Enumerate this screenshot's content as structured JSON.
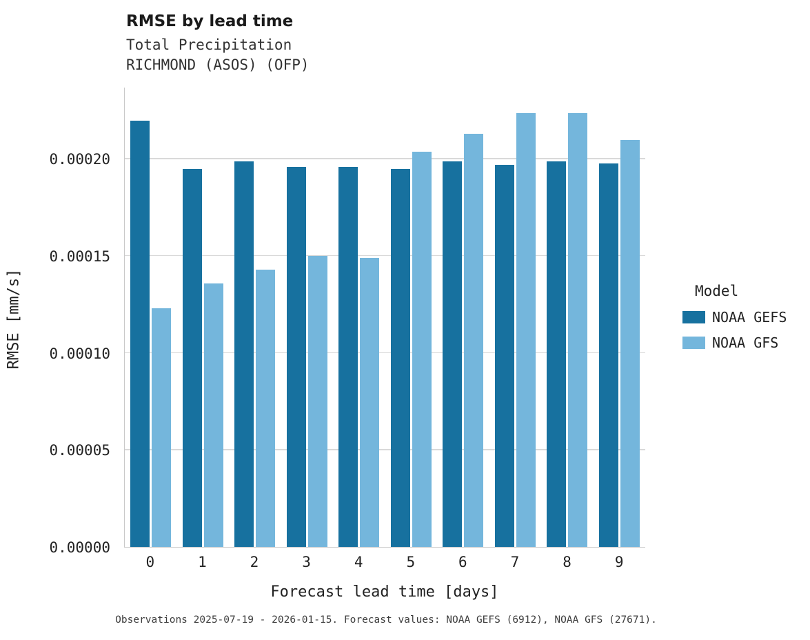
{
  "chart_data": {
    "type": "bar",
    "title": "RMSE by lead time",
    "subtitle_line1": "Total Precipitation",
    "subtitle_line2": "RICHMOND (ASOS) (OFP)",
    "xlabel": "Forecast lead time [days]",
    "ylabel": "RMSE [mm/s]",
    "categories": [
      "0",
      "1",
      "2",
      "3",
      "4",
      "5",
      "6",
      "7",
      "8",
      "9"
    ],
    "series": [
      {
        "name": "NOAA GEFS",
        "color": "#17719f",
        "values": [
          0.00022,
          0.000195,
          0.000199,
          0.000196,
          0.000196,
          0.000195,
          0.000199,
          0.000197,
          0.000199,
          0.000198
        ]
      },
      {
        "name": "NOAA GFS",
        "color": "#74b6dc",
        "values": [
          0.000123,
          0.000136,
          0.000143,
          0.00015,
          0.000149,
          0.000204,
          0.000213,
          0.000224,
          0.000224,
          0.00021
        ]
      }
    ],
    "ylim": [
      0,
      0.000237
    ],
    "yticks": [
      0.0,
      5e-05,
      0.0001,
      0.00015,
      0.0002
    ],
    "ytick_labels": [
      "0.00000",
      "0.00005",
      "0.00010",
      "0.00015",
      "0.00020"
    ],
    "grid": "horizontal",
    "legend_title": "Model",
    "legend_position": "right",
    "caption": "Observations 2025-07-19 - 2026-01-15. Forecast values: NOAA GEFS (6912), NOAA GFS (27671)."
  }
}
